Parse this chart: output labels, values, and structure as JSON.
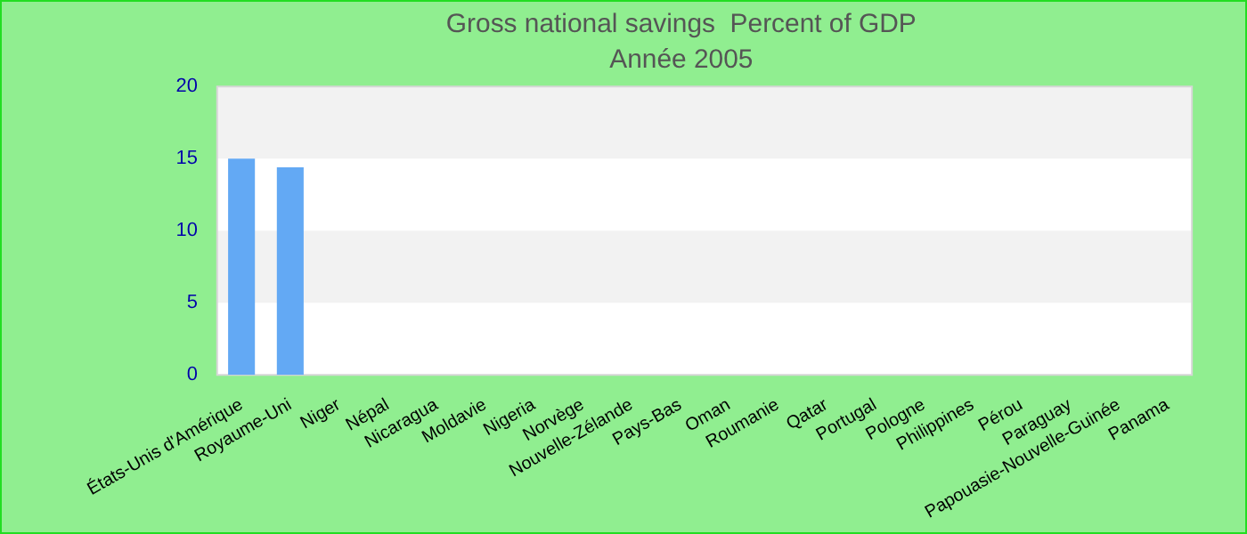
{
  "chart_data": {
    "type": "bar",
    "title": "Gross national savings  Percent of GDP",
    "subtitle": "Année 2005",
    "categories": [
      "États-Unis d'Amérique",
      "Royaume-Uni",
      "Niger",
      "Népal",
      "Nicaragua",
      "Moldavie",
      "Nigeria",
      "Norvège",
      "Nouvelle-Zélande",
      "Pays-Bas",
      "Oman",
      "Roumanie",
      "Qatar",
      "Portugal",
      "Pologne",
      "Philippines",
      "Pérou",
      "Paraguay",
      "Papouasie-Nouvelle-Guinée",
      "Panama"
    ],
    "values": [
      15.0,
      14.4,
      null,
      null,
      null,
      null,
      null,
      null,
      null,
      null,
      null,
      null,
      null,
      null,
      null,
      null,
      null,
      null,
      null,
      null
    ],
    "color": "#63a9f4",
    "ylim": [
      0,
      20
    ],
    "yticks": [
      0,
      5,
      10,
      15,
      20
    ]
  }
}
